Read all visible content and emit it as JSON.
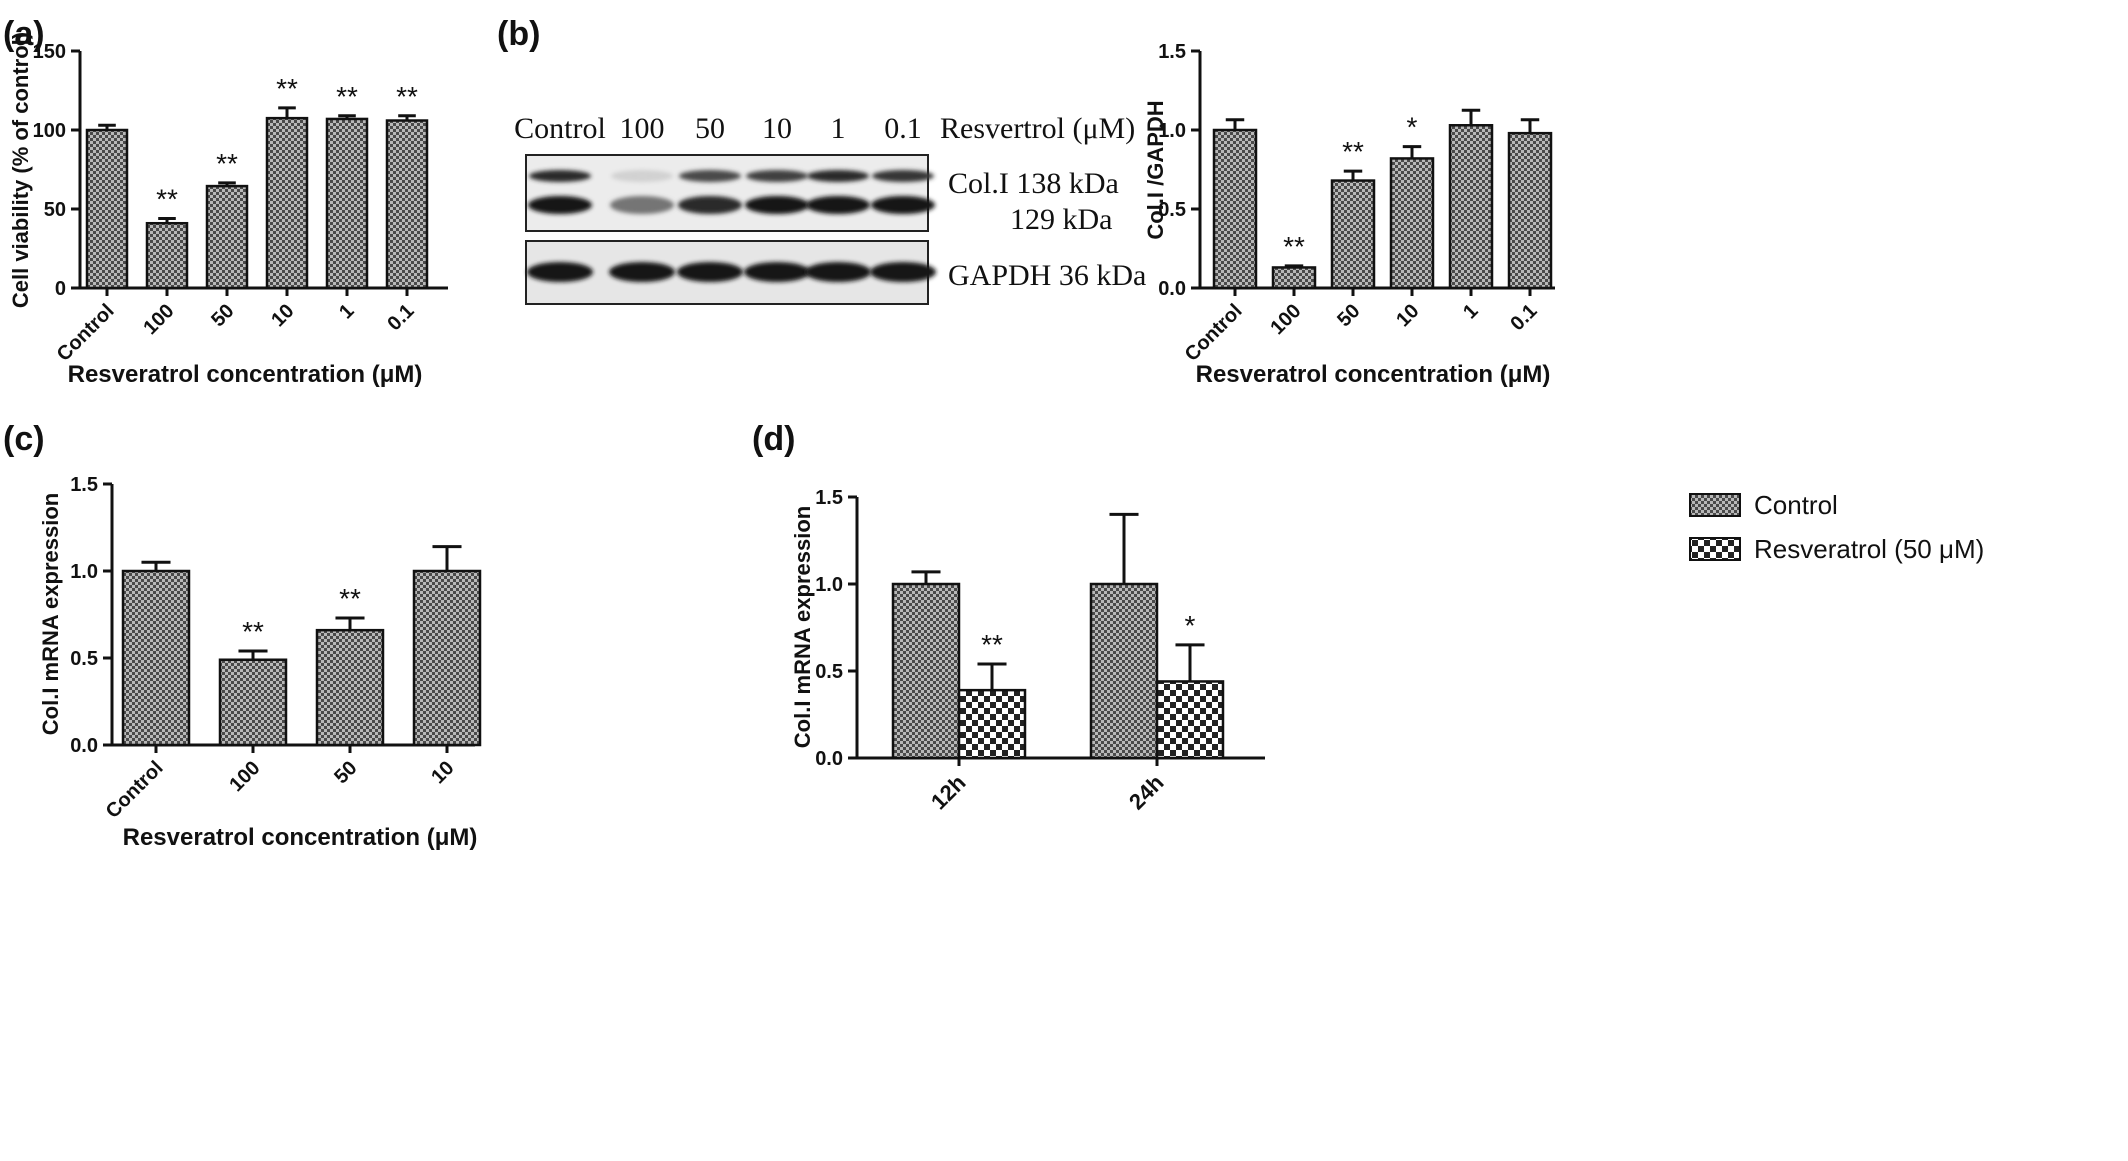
{
  "colors": {
    "ink": "#111111",
    "background": "#ffffff",
    "blot_band": "#1c1c1c",
    "blot_bg": "#e9e9e9"
  },
  "chart_data": [
    {
      "panel": "(a)",
      "type": "bar",
      "categories": [
        "Control",
        "100",
        "50",
        "10",
        "1",
        "0.1"
      ],
      "values": [
        100,
        41,
        64.5,
        107.5,
        107,
        106
      ],
      "errors": [
        3,
        3,
        2,
        6.5,
        2,
        3
      ],
      "significance": [
        "",
        "**",
        "**",
        "**",
        "**",
        "**"
      ],
      "xlabel": "Resveratrol concentration (μM)",
      "ylabel": "Cell viability (% of control)",
      "ylim": [
        0,
        150
      ],
      "yticks": [
        0,
        50,
        100,
        150
      ],
      "ytick_labels": [
        "0",
        "50",
        "100",
        "150"
      ],
      "grid": false
    },
    {
      "panel": "(b)",
      "type": "bar",
      "categories": [
        "Control",
        "100",
        "50",
        "10",
        "1",
        "0.1"
      ],
      "values": [
        1.0,
        0.13,
        0.68,
        0.82,
        1.03,
        0.98
      ],
      "errors": [
        0.065,
        0.01,
        0.06,
        0.075,
        0.095,
        0.085
      ],
      "significance": [
        "",
        "**",
        "**",
        "*",
        "",
        ""
      ],
      "xlabel": "Resveratrol concentration (μM)",
      "ylabel": "Col.I /GAPDH",
      "ylim": [
        0,
        1.5
      ],
      "yticks": [
        0,
        0.5,
        1.0,
        1.5
      ],
      "ytick_labels": [
        "0.0",
        "0.5",
        "1.0",
        "1.5"
      ],
      "grid": false
    },
    {
      "panel": "(c)",
      "type": "bar",
      "categories": [
        "Control",
        "100",
        "50",
        "10"
      ],
      "values": [
        1.0,
        0.49,
        0.66,
        1.0
      ],
      "errors": [
        0.05,
        0.05,
        0.07,
        0.14
      ],
      "significance": [
        "",
        "**",
        "**",
        ""
      ],
      "xlabel": "Resveratrol concentration (μM)",
      "ylabel": "Col.I mRNA expression",
      "ylim": [
        0,
        1.5
      ],
      "yticks": [
        0,
        0.5,
        1.0,
        1.5
      ],
      "ytick_labels": [
        "0.0",
        "0.5",
        "1.0",
        "1.5"
      ],
      "grid": false
    },
    {
      "panel": "(d)",
      "type": "bar",
      "categories": [
        "12h",
        "24h"
      ],
      "series": [
        {
          "name": "Control",
          "values": [
            1.0,
            1.0
          ],
          "errors": [
            0.07,
            0.4
          ],
          "significance": [
            "",
            ""
          ]
        },
        {
          "name": "Resveratrol (50 μM)",
          "values": [
            0.39,
            0.44
          ],
          "errors": [
            0.15,
            0.21
          ],
          "significance": [
            "**",
            "*"
          ]
        }
      ],
      "ylabel": "Col.I mRNA expression",
      "ylim": [
        0,
        1.5
      ],
      "yticks": [
        0,
        0.5,
        1.0,
        1.5
      ],
      "ytick_labels": [
        "0.0",
        "0.5",
        "1.0",
        "1.5"
      ],
      "legend_position": "top-right",
      "grid": false
    }
  ],
  "western_blot": {
    "lane_labels": [
      "Control",
      "100",
      "50",
      "10",
      "1",
      "0.1"
    ],
    "header_label": "Resvertrol (μM)",
    "band_labels": [
      "Col.I 138 kDa",
      "129 kDa",
      "GAPDH 36 kDa"
    ],
    "band_intensity": {
      "col1_138": [
        0.9,
        0.12,
        0.75,
        0.8,
        0.9,
        0.85
      ],
      "col1_129": [
        1.0,
        0.55,
        0.9,
        1.0,
        1.0,
        1.0
      ],
      "gapdh": [
        1.0,
        1.0,
        1.0,
        1.0,
        1.0,
        1.0
      ]
    }
  }
}
